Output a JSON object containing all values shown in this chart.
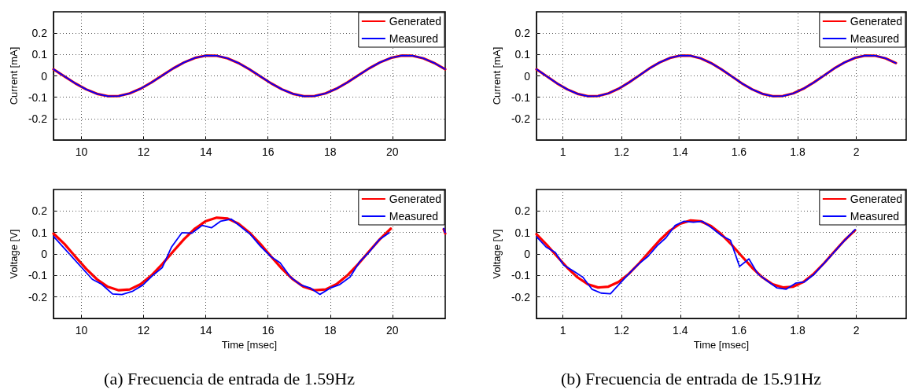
{
  "chart_data": [
    {
      "type": "line",
      "ylabel": "Current [mA]",
      "xlim": [
        9.1,
        21.7
      ],
      "xticks": [
        10,
        12,
        14,
        16,
        18,
        20
      ],
      "ylim": [
        -0.3,
        0.3
      ],
      "yticks": [
        -0.2,
        -0.1,
        0,
        0.1,
        0.2
      ],
      "grid": true,
      "legend": "top right",
      "line_style": "solid",
      "marker": "none",
      "x": [
        9.1,
        9.45,
        9.8,
        10.15,
        10.5,
        10.85,
        11.2,
        11.55,
        11.9,
        12.25,
        12.6,
        12.95,
        13.3,
        13.65,
        14.0,
        14.35,
        14.7,
        15.05,
        15.4,
        15.75,
        16.1,
        16.45,
        16.8,
        17.15,
        17.5,
        17.85,
        18.2,
        18.55,
        18.9,
        19.25,
        19.6,
        19.95,
        20.3,
        20.65,
        21.0,
        21.35,
        21.7
      ],
      "series": [
        {
          "name": "Generated",
          "color": "#ff0000",
          "values": [
            0.031,
            -0.002,
            -0.035,
            -0.063,
            -0.084,
            -0.095,
            -0.094,
            -0.082,
            -0.06,
            -0.031,
            0.002,
            0.035,
            0.063,
            0.084,
            0.095,
            0.094,
            0.082,
            0.06,
            0.031,
            -0.002,
            -0.035,
            -0.063,
            -0.084,
            -0.095,
            -0.094,
            -0.082,
            -0.06,
            -0.031,
            0.002,
            0.035,
            0.063,
            0.084,
            0.095,
            0.094,
            0.082,
            0.06,
            0.031
          ]
        },
        {
          "name": "Measured",
          "color": "#0000ff",
          "values": [
            0.031,
            -0.002,
            -0.035,
            -0.063,
            -0.084,
            -0.095,
            -0.094,
            -0.082,
            -0.06,
            -0.031,
            0.002,
            0.035,
            0.063,
            0.084,
            0.095,
            0.094,
            0.082,
            0.06,
            0.031,
            -0.002,
            -0.035,
            -0.063,
            -0.084,
            -0.095,
            -0.094,
            -0.082,
            -0.06,
            -0.031,
            0.002,
            0.035,
            0.063,
            0.084,
            0.095,
            0.094,
            0.082,
            0.06,
            0.031
          ]
        }
      ]
    },
    {
      "type": "line",
      "ylabel": "Voltage [V]",
      "xlabel": "Time [msec]",
      "xlim": [
        9.1,
        21.7
      ],
      "xticks": [
        10,
        12,
        14,
        16,
        18,
        20
      ],
      "ylim": [
        -0.3,
        0.3
      ],
      "yticks": [
        -0.2,
        -0.1,
        0,
        0.1,
        0.2
      ],
      "grid": true,
      "legend": "top right",
      "line_style": "solid",
      "marker": "none",
      "annotations": [
        "(a) Frecuencia de entrada de 1.59Hz"
      ],
      "x": [
        9.1,
        9.45,
        9.8,
        10.15,
        10.5,
        10.85,
        11.2,
        11.55,
        11.9,
        12.25,
        12.6,
        12.95,
        13.3,
        13.65,
        14.0,
        14.35,
        14.7,
        15.05,
        15.4,
        15.75,
        16.1,
        16.45,
        16.8,
        17.15,
        17.5,
        17.85,
        18.2,
        18.55,
        18.9,
        19.25,
        19.6,
        19.95,
        20.3,
        20.65,
        21.0,
        21.65,
        21.7
      ],
      "series": [
        {
          "name": "Generated",
          "color": "#ff0000",
          "values": [
            0.095,
            0.047,
            -0.012,
            -0.069,
            -0.118,
            -0.153,
            -0.169,
            -0.165,
            -0.141,
            -0.1,
            -0.047,
            0.012,
            0.069,
            0.118,
            0.153,
            0.169,
            0.165,
            0.141,
            0.1,
            0.047,
            -0.012,
            -0.069,
            -0.118,
            -0.153,
            -0.169,
            -0.165,
            -0.141,
            -0.1,
            -0.047,
            0.012,
            0.069,
            0.118,
            null,
            null,
            null,
            0.115,
            0.095
          ]
        },
        {
          "name": "Measured",
          "color": "#0000ff",
          "x": [
            9.1,
            10.35,
            10.65,
            11.0,
            11.3,
            11.65,
            11.97,
            12.27,
            12.6,
            12.9,
            13.23,
            13.55,
            13.88,
            14.18,
            14.47,
            14.82,
            15.13,
            15.44,
            15.75,
            16.08,
            16.39,
            16.72,
            17.05,
            17.37,
            17.67,
            18.0,
            18.31,
            18.64,
            18.95,
            19.26,
            19.58,
            19.9,
            20.3,
            21.0,
            21.65,
            21.7
          ],
          "values": [
            0.082,
            -0.118,
            -0.141,
            -0.186,
            -0.189,
            -0.173,
            -0.145,
            -0.103,
            -0.063,
            0.033,
            0.099,
            0.097,
            0.133,
            0.122,
            0.152,
            0.162,
            0.126,
            0.09,
            0.037,
            -0.011,
            -0.041,
            -0.107,
            -0.144,
            -0.159,
            -0.188,
            -0.159,
            -0.142,
            -0.107,
            -0.036,
            0.01,
            0.067,
            0.099,
            null,
            null,
            0.119,
            0.1
          ]
        }
      ]
    },
    {
      "type": "line",
      "ylabel": "Current [mA]",
      "xlim": [
        0.91,
        2.17
      ],
      "xticks": [
        1,
        1.2,
        1.4,
        1.6,
        1.8,
        2
      ],
      "ylim": [
        -0.3,
        0.3
      ],
      "yticks": [
        -0.2,
        -0.1,
        0,
        0.1,
        0.2
      ],
      "grid": true,
      "legend": "top right",
      "line_style": "solid",
      "marker": "none",
      "x": [
        0.91,
        0.945,
        0.98,
        1.015,
        1.05,
        1.085,
        1.12,
        1.155,
        1.19,
        1.225,
        1.26,
        1.295,
        1.33,
        1.365,
        1.4,
        1.435,
        1.47,
        1.505,
        1.54,
        1.575,
        1.61,
        1.645,
        1.68,
        1.715,
        1.75,
        1.785,
        1.82,
        1.855,
        1.89,
        1.925,
        1.96,
        1.995,
        2.03,
        2.065,
        2.1,
        2.135
      ],
      "series": [
        {
          "name": "Generated",
          "color": "#ff0000",
          "values": [
            0.031,
            -0.002,
            -0.035,
            -0.063,
            -0.084,
            -0.095,
            -0.094,
            -0.082,
            -0.06,
            -0.031,
            0.002,
            0.035,
            0.063,
            0.084,
            0.095,
            0.094,
            0.082,
            0.06,
            0.031,
            -0.002,
            -0.035,
            -0.063,
            -0.084,
            -0.095,
            -0.094,
            -0.082,
            -0.06,
            -0.031,
            0.002,
            0.035,
            0.063,
            0.084,
            0.095,
            0.094,
            0.082,
            0.06
          ]
        },
        {
          "name": "Measured",
          "color": "#0000ff",
          "values": [
            0.031,
            -0.002,
            -0.035,
            -0.063,
            -0.084,
            -0.095,
            -0.094,
            -0.082,
            -0.06,
            -0.031,
            0.002,
            0.035,
            0.063,
            0.084,
            0.095,
            0.094,
            0.082,
            0.06,
            0.031,
            -0.002,
            -0.035,
            -0.063,
            -0.084,
            -0.095,
            -0.094,
            -0.082,
            -0.06,
            -0.031,
            0.002,
            0.035,
            0.063,
            0.084,
            0.095,
            0.094,
            0.082,
            0.06
          ]
        }
      ]
    },
    {
      "type": "line",
      "ylabel": "Voltage [V]",
      "xlabel": "Time [msec]",
      "xlim": [
        0.91,
        2.17
      ],
      "xticks": [
        1,
        1.2,
        1.4,
        1.6,
        1.8,
        2
      ],
      "ylim": [
        -0.3,
        0.3
      ],
      "yticks": [
        -0.2,
        -0.1,
        0,
        0.1,
        0.2
      ],
      "grid": true,
      "legend": "top right",
      "line_style": "solid",
      "marker": "none",
      "annotations": [
        "(b) Frecuencia de entrada de 15.91Hz"
      ],
      "x": [
        0.91,
        0.945,
        0.98,
        1.015,
        1.05,
        1.085,
        1.12,
        1.155,
        1.19,
        1.225,
        1.26,
        1.295,
        1.33,
        1.365,
        1.4,
        1.435,
        1.47,
        1.505,
        1.54,
        1.575,
        1.61,
        1.645,
        1.68,
        1.715,
        1.75,
        1.785,
        1.82,
        1.855,
        1.89,
        1.925,
        1.96,
        1.995
      ],
      "series": [
        {
          "name": "Generated",
          "color": "#ff0000",
          "values": [
            0.092,
            0.043,
            -0.011,
            -0.064,
            -0.109,
            -0.141,
            -0.156,
            -0.152,
            -0.13,
            -0.092,
            -0.043,
            0.011,
            0.064,
            0.109,
            0.141,
            0.156,
            0.152,
            0.13,
            0.092,
            0.043,
            -0.011,
            -0.064,
            -0.109,
            -0.141,
            -0.156,
            -0.152,
            -0.13,
            -0.092,
            -0.043,
            0.011,
            0.064,
            0.109
          ]
        },
        {
          "name": "Measured",
          "color": "#0000ff",
          "x": [
            0.911,
            0.943,
            0.974,
            1.002,
            1.034,
            1.068,
            1.099,
            1.13,
            1.162,
            1.197,
            1.227,
            1.258,
            1.291,
            1.321,
            1.351,
            1.382,
            1.412,
            1.445,
            1.476,
            1.508,
            1.54,
            1.571,
            1.602,
            1.634,
            1.664,
            1.697,
            1.73,
            1.761,
            1.793,
            1.823,
            1.856,
            1.887,
            1.917,
            1.948,
            1.978,
            1.996
          ],
          "values": [
            0.079,
            0.032,
            0.007,
            -0.051,
            -0.078,
            -0.108,
            -0.164,
            -0.182,
            -0.185,
            -0.133,
            -0.089,
            -0.047,
            -0.01,
            0.038,
            0.075,
            0.132,
            0.152,
            0.148,
            0.152,
            0.121,
            0.086,
            0.064,
            -0.058,
            -0.023,
            -0.092,
            -0.126,
            -0.158,
            -0.164,
            -0.136,
            -0.13,
            -0.095,
            -0.048,
            -0.003,
            0.045,
            0.089,
            0.114
          ]
        }
      ]
    }
  ]
}
